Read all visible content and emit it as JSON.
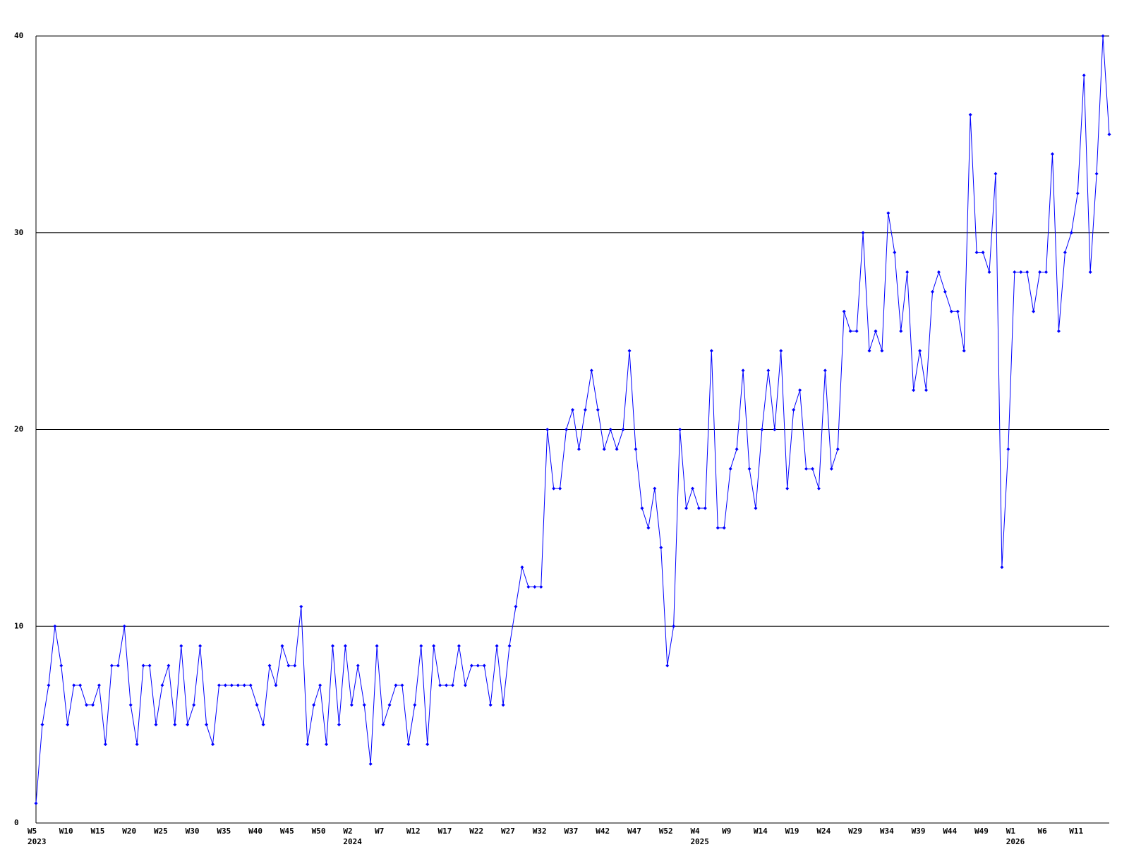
{
  "chart_data": {
    "type": "line",
    "categories": [
      "W5",
      null,
      null,
      null,
      null,
      "W10",
      null,
      null,
      null,
      null,
      "W15",
      null,
      null,
      null,
      null,
      "W20",
      null,
      null,
      null,
      null,
      "W25",
      null,
      null,
      null,
      null,
      "W30",
      null,
      null,
      null,
      null,
      "W35",
      null,
      null,
      null,
      null,
      "W40",
      null,
      null,
      null,
      null,
      "W45",
      null,
      null,
      null,
      null,
      "W50",
      null,
      null,
      null,
      null,
      "W2",
      null,
      null,
      null,
      null,
      "W7",
      null,
      null,
      null,
      null,
      "W12",
      null,
      null,
      null,
      null,
      "W17",
      null,
      null,
      null,
      null,
      "W22",
      null,
      null,
      null,
      null,
      "W27",
      null,
      null,
      null,
      null,
      "W32",
      null,
      null,
      null,
      null,
      "W37",
      null,
      null,
      null,
      null,
      "W42",
      null,
      null,
      null,
      null,
      "W47",
      null,
      null,
      null,
      null,
      "W52",
      null,
      null,
      null,
      null,
      "W4",
      null,
      null,
      null,
      null,
      "W9",
      null,
      null,
      null,
      null,
      "W14",
      null,
      null,
      null,
      null,
      "W19",
      null,
      null,
      null,
      null,
      "W24",
      null,
      null,
      null,
      null,
      "W29",
      null,
      null,
      null,
      null,
      "W34",
      null,
      null,
      null,
      null,
      "W39",
      null,
      null,
      null,
      null,
      "W44",
      null,
      null,
      null,
      null,
      "W49",
      null,
      null,
      null,
      null,
      "W1",
      null,
      null,
      null,
      null,
      "W6",
      null,
      null,
      null,
      null,
      "W11",
      null,
      null,
      null,
      null,
      null
    ],
    "category_years": [
      "2023",
      null,
      null,
      null,
      null,
      null,
      null,
      null,
      null,
      null,
      null,
      null,
      null,
      null,
      null,
      null,
      null,
      null,
      null,
      null,
      null,
      null,
      null,
      null,
      null,
      null,
      null,
      null,
      null,
      null,
      null,
      null,
      null,
      null,
      null,
      null,
      null,
      null,
      null,
      null,
      null,
      null,
      null,
      null,
      null,
      null,
      null,
      null,
      null,
      null,
      "2024",
      null,
      null,
      null,
      null,
      null,
      null,
      null,
      null,
      null,
      null,
      null,
      null,
      null,
      null,
      null,
      null,
      null,
      null,
      null,
      null,
      null,
      null,
      null,
      null,
      null,
      null,
      null,
      null,
      null,
      null,
      null,
      null,
      null,
      null,
      null,
      null,
      null,
      null,
      null,
      null,
      null,
      null,
      null,
      null,
      null,
      null,
      null,
      null,
      null,
      null,
      null,
      null,
      null,
      null,
      "2025",
      null,
      null,
      null,
      null,
      null,
      null,
      null,
      null,
      null,
      null,
      null,
      null,
      null,
      null,
      null,
      null,
      null,
      null,
      null,
      null,
      null,
      null,
      null,
      null,
      null,
      null,
      null,
      null,
      null,
      null,
      null,
      null,
      null,
      null,
      null,
      null,
      null,
      null,
      null,
      null,
      null,
      null,
      null,
      null,
      null,
      null,
      null,
      null,
      null,
      "2026",
      null,
      null,
      null,
      null,
      null,
      null,
      null,
      null,
      null,
      null,
      null,
      null,
      null,
      null,
      null
    ],
    "values": [
      1,
      5,
      7,
      10,
      8,
      5,
      7,
      7,
      6,
      6,
      7,
      4,
      8,
      8,
      10,
      6,
      4,
      8,
      8,
      5,
      7,
      8,
      5,
      9,
      5,
      6,
      9,
      5,
      4,
      7,
      7,
      7,
      7,
      7,
      7,
      6,
      5,
      8,
      7,
      9,
      8,
      8,
      11,
      4,
      6,
      7,
      4,
      9,
      5,
      9,
      6,
      8,
      6,
      3,
      9,
      5,
      6,
      7,
      7,
      4,
      6,
      9,
      4,
      9,
      7,
      7,
      7,
      9,
      7,
      8,
      8,
      8,
      6,
      9,
      6,
      9,
      11,
      13,
      12,
      12,
      12,
      20,
      17,
      17,
      20,
      21,
      19,
      21,
      23,
      21,
      19,
      20,
      19,
      20,
      24,
      19,
      16,
      15,
      17,
      14,
      8,
      10,
      20,
      16,
      17,
      16,
      16,
      24,
      15,
      15,
      18,
      19,
      23,
      18,
      16,
      20,
      23,
      20,
      24,
      17,
      21,
      22,
      18,
      18,
      17,
      23,
      18,
      19,
      26,
      25,
      25,
      30,
      24,
      25,
      24,
      31,
      29,
      25,
      28,
      22,
      24,
      22,
      27,
      28,
      27,
      26,
      26,
      24,
      36,
      29,
      29,
      28,
      33,
      13,
      19,
      28,
      28,
      28,
      26,
      28,
      28,
      34,
      25,
      29,
      30,
      32,
      38,
      28,
      33,
      40,
      35
    ],
    "color": "#0000ff",
    "ylim": [
      0,
      40
    ],
    "yticks": [
      0,
      10,
      20,
      30,
      40
    ],
    "grid": true
  }
}
